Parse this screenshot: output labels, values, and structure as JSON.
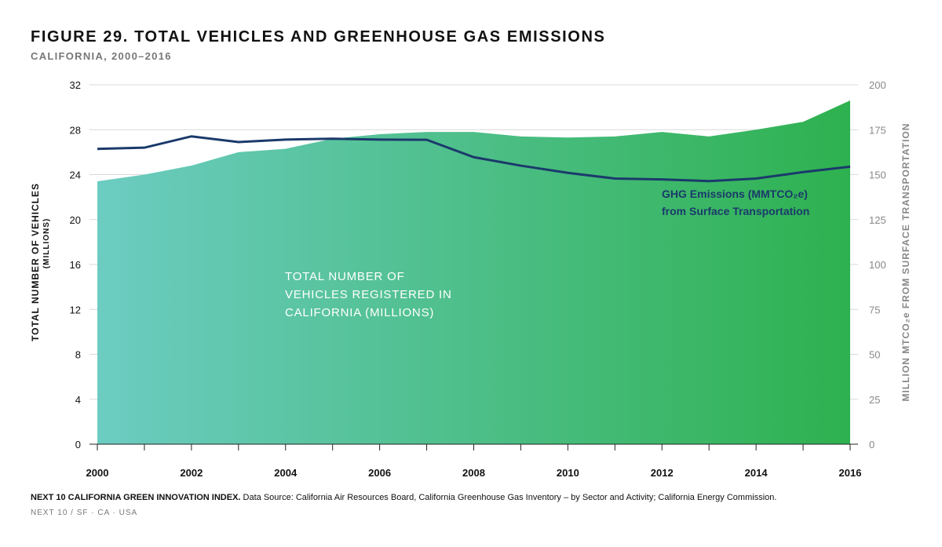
{
  "header": {
    "title": "FIGURE 29. TOTAL VEHICLES AND GREENHOUSE GAS EMISSIONS",
    "subtitle": "CALIFORNIA, 2000–2016"
  },
  "footer": {
    "source_bold": "NEXT 10 CALIFORNIA GREEN INNOVATION INDEX.",
    "source_text": " Data Source: California Air Resources Board, California Greenhouse Gas Inventory – by Sector and Activity; California Energy Commission.",
    "credit": "NEXT 10 / SF · CA · USA"
  },
  "colors": {
    "area_start": "#6cccc2",
    "area_end": "#2eb14f",
    "line": "#1b3a6b",
    "grid": "#d9d9d9",
    "axis_text": "#111111",
    "right_axis_text": "#888888",
    "annotation_area": "#ffffff",
    "annotation_line": "#1b3a6b"
  },
  "chart_data": {
    "type": "area",
    "x": [
      2000,
      2001,
      2002,
      2003,
      2004,
      2005,
      2006,
      2007,
      2008,
      2009,
      2010,
      2011,
      2012,
      2013,
      2014,
      2015,
      2016
    ],
    "x_ticks": [
      "2000",
      "2002",
      "2004",
      "2006",
      "2008",
      "2010",
      "2012",
      "2014",
      "2016"
    ],
    "y_left": {
      "label_line1": "TOTAL NUMBER OF VEHICLES",
      "label_line2": "(MILLIONS)",
      "ylim": [
        0,
        32
      ],
      "ticks": [
        "0",
        "4",
        "8",
        "12",
        "16",
        "20",
        "24",
        "28",
        "32"
      ]
    },
    "y_right": {
      "label": "MILLION MTCO₂e FROM SURFACE TRANSPORTATION",
      "ylim": [
        0,
        200
      ],
      "ticks": [
        "0",
        "25",
        "50",
        "75",
        "100",
        "125",
        "150",
        "175",
        "200"
      ]
    },
    "series": [
      {
        "type": "area",
        "axis": "left",
        "values": [
          23.4,
          24.0,
          24.8,
          26.0,
          26.3,
          27.2,
          27.6,
          27.8,
          27.8,
          27.4,
          27.3,
          27.4,
          27.8,
          27.4,
          28.0,
          28.7,
          30.6
        ]
      },
      {
        "type": "line",
        "axis": "right",
        "values": [
          164.3,
          165.0,
          171.3,
          168.1,
          169.5,
          170.0,
          169.5,
          169.4,
          159.7,
          155.0,
          151.0,
          147.8,
          147.3,
          146.4,
          147.8,
          151.4,
          154.4
        ]
      }
    ],
    "annotations": {
      "area_label": [
        "TOTAL NUMBER OF",
        "VEHICLES REGISTERED IN",
        "CALIFORNIA (MILLIONS)"
      ],
      "line_label_1": "GHG Emissions (MMTCO₂e)",
      "line_label_2": "from Surface Transportation"
    },
    "grid": true
  }
}
